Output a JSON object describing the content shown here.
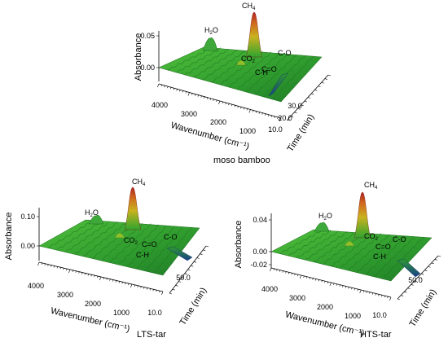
{
  "chart_data": [
    {
      "type": "surface",
      "caption": "moso bamboo",
      "ylabel": "Absorbance",
      "xlabel": "Wavenumber (cm⁻¹)",
      "zlabel": "Time (min)",
      "y_ticks": [
        "0.05",
        "0.00"
      ],
      "x_ticks": [
        "4000",
        "3000",
        "2000",
        "1000"
      ],
      "z_ticks": [
        "10.0",
        "20.0",
        "30.0"
      ],
      "annotations": [
        {
          "main": "CH",
          "sub": "4"
        },
        {
          "main": "H",
          "sub": "2",
          "tail": "O"
        },
        {
          "main": "CO",
          "sub": "2"
        },
        {
          "main": "C=O"
        },
        {
          "main": "C-O"
        },
        {
          "main": "C-H"
        }
      ],
      "peaks": [
        {
          "wavenumber": 3016,
          "absorbance": 0.075
        },
        {
          "wavenumber": 3700,
          "absorbance": 0.045
        },
        {
          "wavenumber": 2360,
          "absorbance": 0.025
        },
        {
          "wavenumber": 1750,
          "absorbance": 0.015
        },
        {
          "wavenumber": 1050,
          "absorbance": 0.02
        },
        {
          "wavenumber": 1400,
          "absorbance": 0.01
        }
      ],
      "colors": {
        "low": "#1a3f8a",
        "base": "#2ea52e",
        "mid": "#c9b21f",
        "high": "#b0221f"
      }
    },
    {
      "type": "surface",
      "caption": "LTS-tar",
      "ylabel": "Absorbance",
      "xlabel": "Wavenumber (cm⁻¹)",
      "zlabel": "Time (min)",
      "y_ticks": [
        "0.10",
        "0.00"
      ],
      "x_ticks": [
        "4000",
        "3000",
        "2000",
        "1000"
      ],
      "z_ticks": [
        "10.0",
        "50.0"
      ],
      "annotations": [
        {
          "main": "CH",
          "sub": "4"
        },
        {
          "main": "H",
          "sub": "2",
          "tail": "O"
        },
        {
          "main": "CO",
          "sub": "2"
        },
        {
          "main": "C=O"
        },
        {
          "main": "C-O"
        },
        {
          "main": "C-H"
        }
      ],
      "peaks": [
        {
          "wavenumber": 3016,
          "absorbance": 0.14
        },
        {
          "wavenumber": 3700,
          "absorbance": 0.06
        },
        {
          "wavenumber": 2360,
          "absorbance": 0.02
        },
        {
          "wavenumber": 1750,
          "absorbance": 0.015
        },
        {
          "wavenumber": 1050,
          "absorbance": 0.02
        },
        {
          "wavenumber": 1400,
          "absorbance": 0.01
        }
      ],
      "colors": {
        "low": "#1a3f8a",
        "base": "#2ea52e",
        "mid": "#c9b21f",
        "high": "#b0221f"
      }
    },
    {
      "type": "surface",
      "caption": "HTS-tar",
      "ylabel": "Absorbance",
      "xlabel": "Wavenumber (cm⁻¹)",
      "zlabel": "Time (min)",
      "y_ticks": [
        "0.04",
        "0.00",
        "-0.02"
      ],
      "x_ticks": [
        "4000",
        "3000",
        "2000",
        "1000"
      ],
      "z_ticks": [
        "10.0",
        "50.0"
      ],
      "annotations": [
        {
          "main": "CH",
          "sub": "4"
        },
        {
          "main": "H",
          "sub": "2",
          "tail": "O"
        },
        {
          "main": "CO",
          "sub": "2"
        },
        {
          "main": "C=O"
        },
        {
          "main": "C-O"
        },
        {
          "main": "C-H"
        }
      ],
      "peaks": [
        {
          "wavenumber": 3016,
          "absorbance": 0.055
        },
        {
          "wavenumber": 3700,
          "absorbance": 0.02
        },
        {
          "wavenumber": 2360,
          "absorbance": 0.015
        },
        {
          "wavenumber": 1750,
          "absorbance": 0.01
        },
        {
          "wavenumber": 1050,
          "absorbance": 0.01
        },
        {
          "wavenumber": 1400,
          "absorbance": 0.008
        }
      ],
      "colors": {
        "low": "#1a3f8a",
        "base": "#2ea52e",
        "mid": "#c9b21f",
        "high": "#b0221f"
      }
    }
  ]
}
